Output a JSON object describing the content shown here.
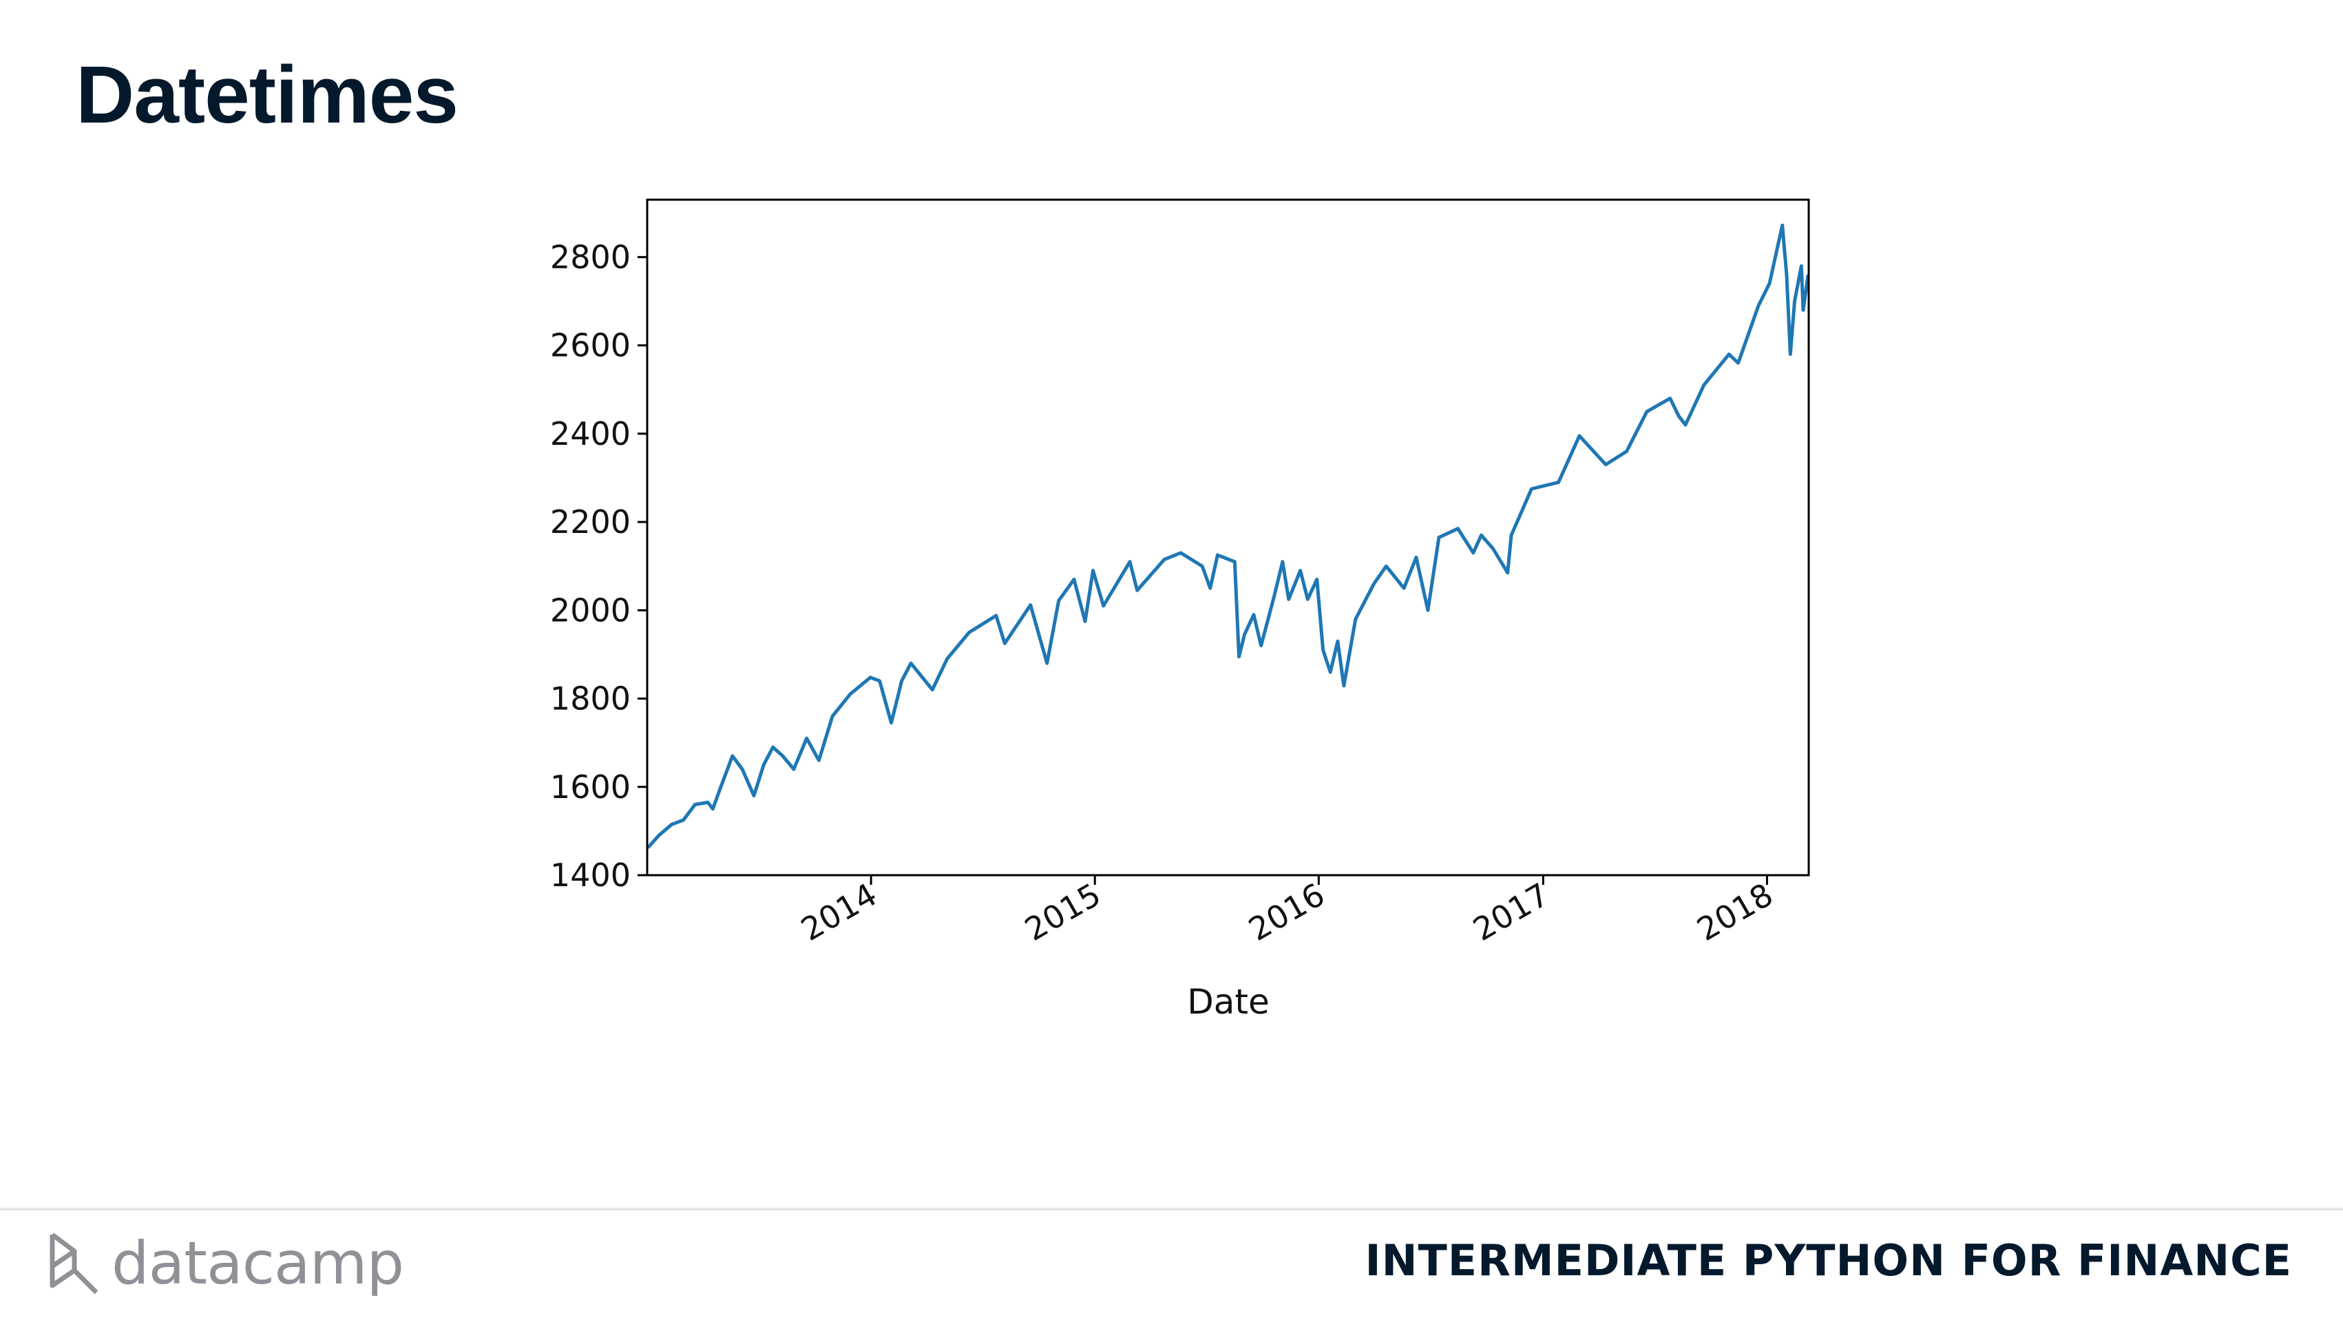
{
  "slide": {
    "title": "Datetimes"
  },
  "footer": {
    "brand": "datacamp",
    "brand_icon": "datacamp-logo-icon",
    "course": "INTERMEDIATE PYTHON FOR FINANCE"
  },
  "chart_data": {
    "type": "line",
    "title": "",
    "xlabel": "Date",
    "ylabel": "",
    "xlim": [
      "2013-01-01",
      "2018-03-10"
    ],
    "ylim": [
      1400,
      2930
    ],
    "yticks": [
      1400,
      1600,
      1800,
      2000,
      2200,
      2400,
      2600,
      2800
    ],
    "xticks": [
      "2014",
      "2015",
      "2016",
      "2017",
      "2018"
    ],
    "grid": false,
    "legend": "none",
    "line_color": "#1f77b4",
    "series": [
      {
        "x": [
          "2013-01-02",
          "2013-01-20",
          "2013-02-10",
          "2013-03-01",
          "2013-03-20",
          "2013-04-10",
          "2013-04-18",
          "2013-05-01",
          "2013-05-20",
          "2013-06-05",
          "2013-06-24",
          "2013-07-10",
          "2013-07-25",
          "2013-08-10",
          "2013-08-28",
          "2013-09-18",
          "2013-10-08",
          "2013-10-30",
          "2013-11-28",
          "2013-12-31",
          "2014-01-15",
          "2014-02-03",
          "2014-02-20",
          "2014-03-07",
          "2014-04-11",
          "2014-05-05",
          "2014-06-10",
          "2014-07-24",
          "2014-08-07",
          "2014-09-18",
          "2014-10-15",
          "2014-11-03",
          "2014-11-28",
          "2014-12-16",
          "2014-12-29",
          "2015-01-15",
          "2015-02-27",
          "2015-03-11",
          "2015-04-24",
          "2015-05-21",
          "2015-06-25",
          "2015-07-08",
          "2015-07-20",
          "2015-08-17",
          "2015-08-24",
          "2015-09-02",
          "2015-09-17",
          "2015-09-29",
          "2015-10-20",
          "2015-11-03",
          "2015-11-13",
          "2015-12-02",
          "2015-12-14",
          "2015-12-29",
          "2016-01-08",
          "2016-01-20",
          "2016-02-01",
          "2016-02-11",
          "2016-03-01",
          "2016-03-31",
          "2016-04-20",
          "2016-05-19",
          "2016-06-08",
          "2016-06-27",
          "2016-07-15",
          "2016-08-15",
          "2016-09-09",
          "2016-09-22",
          "2016-10-11",
          "2016-11-04",
          "2016-11-10",
          "2016-12-13",
          "2017-01-26",
          "2017-03-01",
          "2017-04-13",
          "2017-05-17",
          "2017-06-19",
          "2017-07-27",
          "2017-08-10",
          "2017-08-21",
          "2017-09-20",
          "2017-10-31",
          "2017-11-15",
          "2017-12-18",
          "2018-01-05",
          "2018-01-26",
          "2018-02-02",
          "2018-02-08",
          "2018-02-15",
          "2018-02-26",
          "2018-03-01",
          "2018-03-09"
        ],
        "y": [
          1462,
          1490,
          1515,
          1525,
          1560,
          1565,
          1550,
          1600,
          1670,
          1640,
          1580,
          1650,
          1690,
          1670,
          1640,
          1710,
          1660,
          1760,
          1810,
          1848,
          1840,
          1745,
          1840,
          1880,
          1820,
          1890,
          1950,
          1988,
          1925,
          2012,
          1880,
          2022,
          2070,
          1975,
          2090,
          2010,
          2110,
          2045,
          2115,
          2130,
          2100,
          2050,
          2125,
          2110,
          1895,
          1945,
          1990,
          1920,
          2030,
          2110,
          2025,
          2090,
          2025,
          2070,
          1910,
          1860,
          1930,
          1829,
          1980,
          2060,
          2100,
          2050,
          2120,
          2000,
          2165,
          2185,
          2130,
          2170,
          2140,
          2085,
          2170,
          2275,
          2290,
          2395,
          2330,
          2360,
          2450,
          2480,
          2440,
          2420,
          2510,
          2580,
          2560,
          2690,
          2740,
          2872,
          2760,
          2580,
          2700,
          2780,
          2680,
          2760
        ]
      }
    ]
  }
}
